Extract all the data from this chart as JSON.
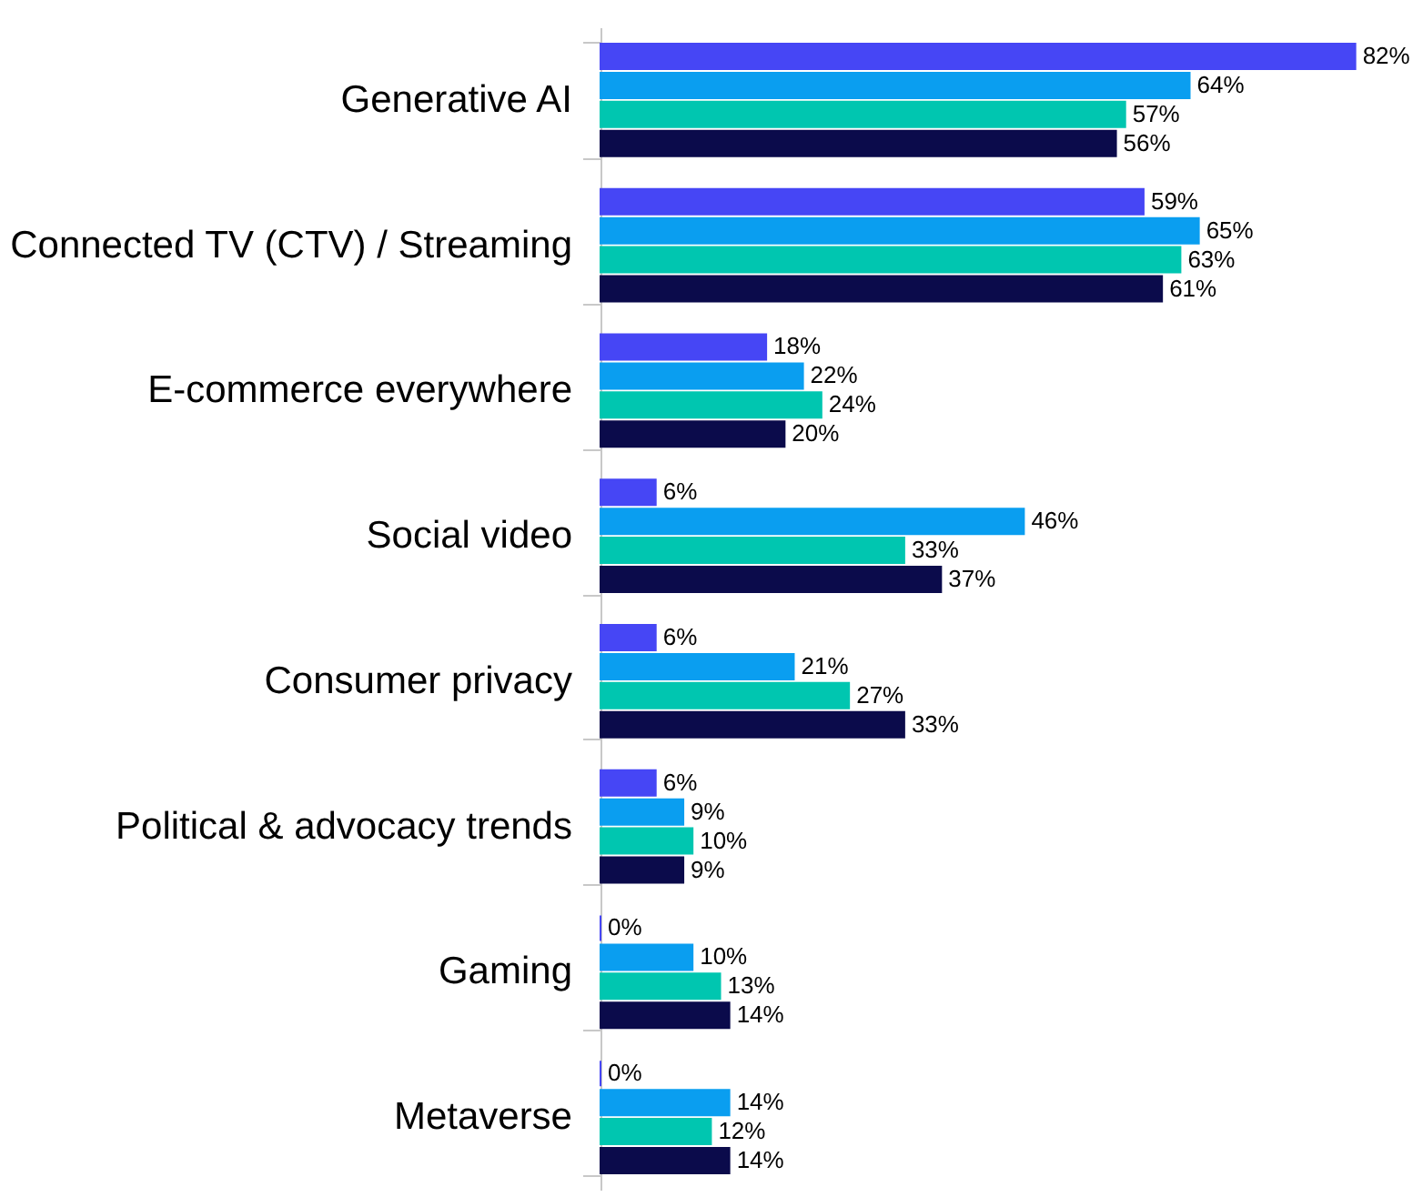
{
  "chart_data": {
    "type": "bar",
    "orientation": "horizontal",
    "legend": false,
    "grid": false,
    "categories": [
      "Generative AI",
      "Connected TV (CTV) / Streaming",
      "E-commerce everywhere",
      "Social video",
      "Consumer privacy",
      "Political & advocacy trends",
      "Gaming",
      "Metaverse"
    ],
    "series": [
      {
        "color": "#4646f5",
        "values": [
          82,
          59,
          18,
          6,
          6,
          6,
          0,
          0
        ],
        "value_labels": [
          "82%",
          "59%",
          "18%",
          "6%",
          "6%",
          "6%",
          "0%",
          "0%"
        ]
      },
      {
        "color": "#0a9ef0",
        "values": [
          64,
          65,
          22,
          46,
          21,
          9,
          10,
          14
        ],
        "value_labels": [
          "64%",
          "65%",
          "22%",
          "46%",
          "21%",
          "9%",
          "10%",
          "14%"
        ]
      },
      {
        "color": "#00c6b0",
        "values": [
          57,
          63,
          24,
          33,
          27,
          10,
          13,
          12
        ],
        "value_labels": [
          "57%",
          "63%",
          "24%",
          "33%",
          "27%",
          "10%",
          "13%",
          "12%"
        ]
      },
      {
        "color": "#0b0b4b",
        "values": [
          56,
          61,
          20,
          37,
          33,
          9,
          14,
          14
        ],
        "value_labels": [
          "56%",
          "61%",
          "20%",
          "37%",
          "33%",
          "9%",
          "14%",
          "14%"
        ]
      }
    ]
  }
}
